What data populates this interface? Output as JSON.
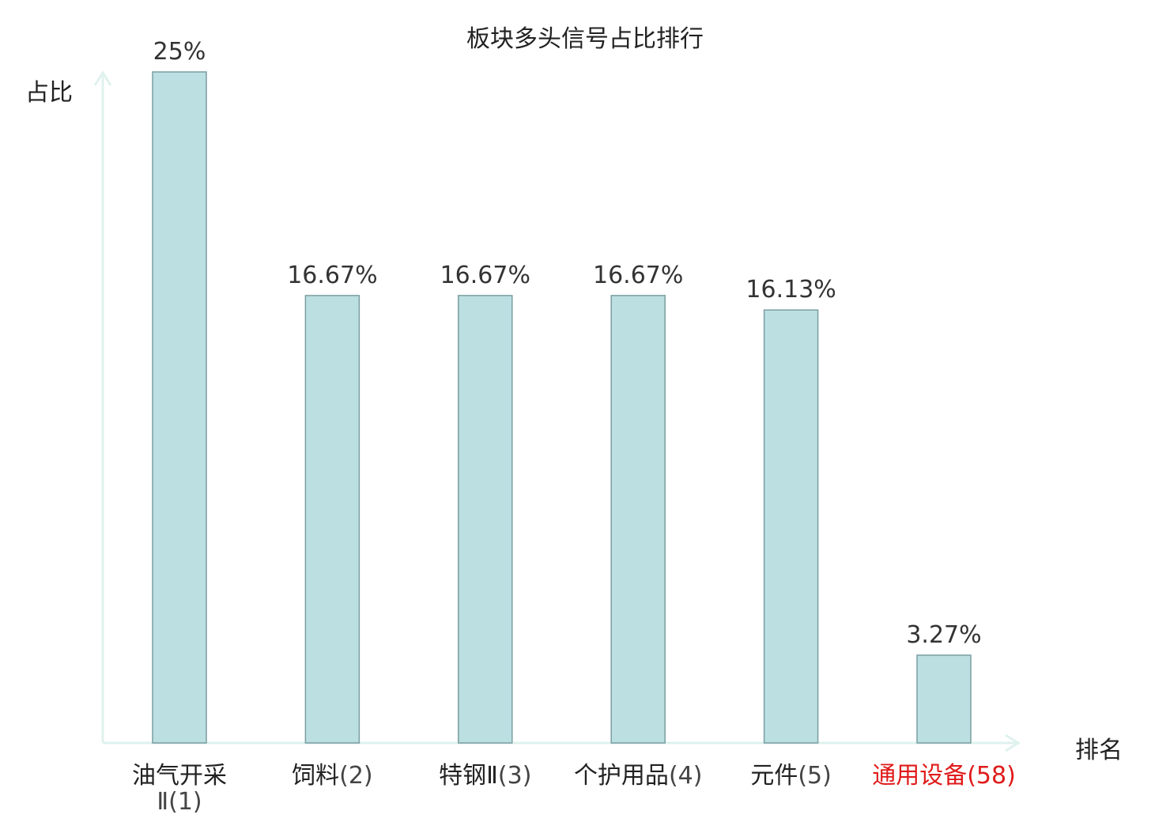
{
  "colors": {
    "bar_fill": "#bce0e2",
    "bar_stroke": "#7a9ea2",
    "axis": "#dff2ee",
    "text": "#333333",
    "highlight": "#e01b1b"
  },
  "chart_data": {
    "type": "bar",
    "title": "板块多头信号占比排行",
    "ylabel": "占比",
    "xlabel": "排名",
    "ylim": [
      0,
      25
    ],
    "grid": false,
    "categories": [
      {
        "name": "油气开采",
        "name2": "Ⅱ",
        "rank": "(1)",
        "highlight": false
      },
      {
        "name": "饲料",
        "name2": "",
        "rank": "(2)",
        "highlight": false
      },
      {
        "name": "特钢Ⅱ",
        "name2": "",
        "rank": "(3)",
        "highlight": false
      },
      {
        "name": "个护用品",
        "name2": "",
        "rank": "(4)",
        "highlight": false
      },
      {
        "name": "元件",
        "name2": "",
        "rank": "(5)",
        "highlight": false
      },
      {
        "name": "通用设备",
        "name2": "",
        "rank": "(58)",
        "highlight": true
      }
    ],
    "values": [
      25,
      16.67,
      16.67,
      16.67,
      16.13,
      3.27
    ],
    "value_labels": [
      "25%",
      "16.67%",
      "16.67%",
      "16.67%",
      "16.13%",
      "3.27%"
    ]
  }
}
